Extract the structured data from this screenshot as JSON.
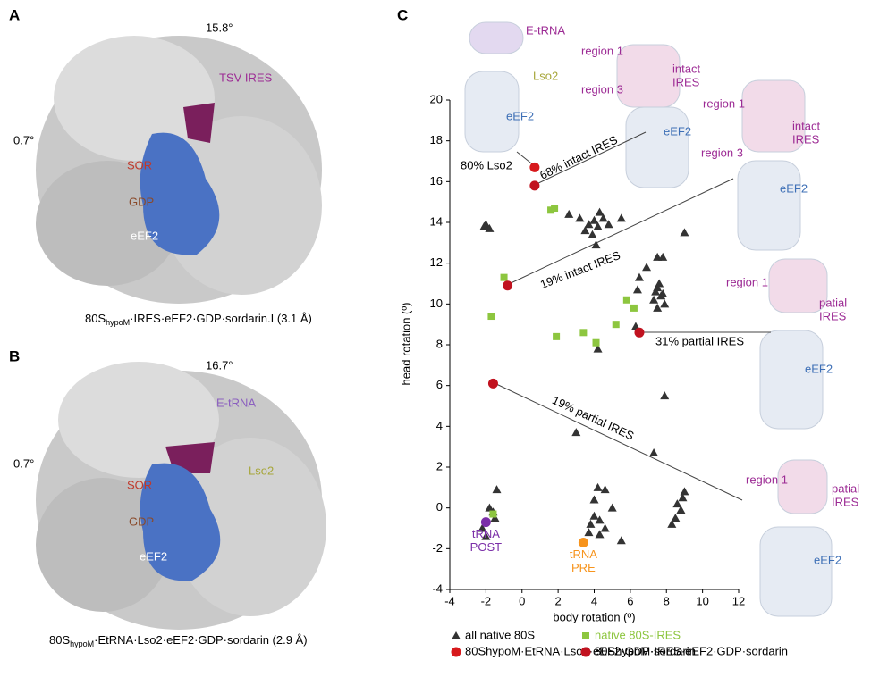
{
  "panels": {
    "a": {
      "letter": "A",
      "rotation_top": "15.8°",
      "rotation_left": "0.7°",
      "ligand": "TSV IRES",
      "sor": "SOR",
      "gdp": "GDP",
      "eef2": "eEF2",
      "caption": {
        "pre": "80S",
        "sub": "hypoM",
        "post": "·IRES·eEF2·GDP·sordarin.I (3.1 Å)"
      }
    },
    "b": {
      "letter": "B",
      "rotation_top": "16.7°",
      "rotation_left": "0.7°",
      "ligand": "E-tRNA",
      "lso2": "Lso2",
      "sor": "SOR",
      "gdp": "GDP",
      "eef2": "eEF2",
      "caption": {
        "pre": "80S",
        "sub": "hypoM",
        "post": "·EtRNA·Lso2·eEF2·GDP·sordarin (2.9 Å)"
      }
    },
    "c": {
      "letter": "C"
    }
  },
  "insets": {
    "etrna": "E-tRNA",
    "lso2": "Lso2",
    "eef2_1": "eEF2",
    "r1_1": "region 1",
    "r3_1": "region 3",
    "intact_1": [
      "intact",
      "IRES"
    ],
    "eef2_2": "eEF2",
    "r1_2": "region 1",
    "r3_2": "region 3",
    "intact_2": [
      "intact",
      "IRES"
    ],
    "eef2_3": "eEF2",
    "r1_3": "region 1",
    "partial_1": [
      "patial",
      "IRES"
    ],
    "eef2_4": "eEF2",
    "r1_4": "region 1",
    "partial_2": [
      "patial",
      "IRES"
    ],
    "eef2_5": "eEF2"
  },
  "chart_data": {
    "type": "scatter",
    "xlabel": "body rotation (º)",
    "ylabel": "head rotation (º)",
    "xlim": [
      -4,
      12
    ],
    "ylim": [
      -4,
      20
    ],
    "xticks": [
      -4,
      -2,
      0,
      2,
      4,
      6,
      8,
      10,
      12
    ],
    "yticks": [
      -4,
      -2,
      0,
      2,
      4,
      6,
      8,
      10,
      12,
      14,
      16,
      18,
      20
    ],
    "series": [
      {
        "name": "all native 80S",
        "color": "#333333",
        "marker": "triangle",
        "x": [
          -2,
          -1.8,
          -2.1,
          -2,
          -1.5,
          -1.8,
          -1.4,
          -2.2,
          -1.6,
          3,
          2.6,
          3.2,
          3.7,
          4,
          4.2,
          3.5,
          4.5,
          3.9,
          4.3,
          4.8,
          4.1,
          4.2,
          5.5,
          6.4,
          6.5,
          6.9,
          7.5,
          7.3,
          7.6,
          7.8,
          7.5,
          7.8,
          7.5,
          7.9,
          9,
          7.4,
          7.7,
          6.3,
          7.9,
          7.3,
          4,
          4.2,
          4.6,
          4,
          3.8,
          4.3,
          4.6,
          5.5,
          4.3,
          3.7,
          5,
          8.5,
          8.9,
          8.6,
          8.8,
          9,
          8.3
        ],
        "y": [
          13.9,
          13.7,
          13.8,
          -1.4,
          -0.5,
          0,
          0.9,
          -1,
          -0.2,
          3.7,
          14.4,
          14.2,
          13.9,
          14.1,
          13.8,
          13.6,
          14.2,
          13.4,
          14.5,
          13.9,
          12.9,
          7.8,
          14.2,
          10.7,
          11.3,
          11.8,
          10.8,
          10.2,
          11,
          10.5,
          12.3,
          12.3,
          9.8,
          10,
          13.5,
          10.6,
          10.4,
          8.9,
          5.5,
          2.7,
          0.4,
          1,
          0.9,
          -0.4,
          -0.8,
          -0.6,
          -1,
          -1.6,
          -1.3,
          -1.2,
          0,
          -0.5,
          0.5,
          0.2,
          -0.1,
          0.8,
          -0.8
        ]
      },
      {
        "name": "native 80S-IRES",
        "color": "#8dc63f",
        "marker": "square",
        "x": [
          -1,
          -1.7,
          1.6,
          1.8,
          1.9,
          3.4,
          4.1,
          5.2,
          5.8,
          6.2,
          -1.6
        ],
        "y": [
          11.3,
          9.4,
          14.6,
          14.7,
          8.4,
          8.6,
          8.1,
          9,
          10.2,
          9.8,
          -0.3
        ]
      },
      {
        "name": "80ShypoM·EtRNA·Lso2·eEF2·GDP·sordarin",
        "color": "#d7191c",
        "marker": "circle",
        "x": [
          0.7
        ],
        "y": [
          16.7
        ]
      },
      {
        "name": "80ShypoM·IRES·eEF2·GDP·sordarin",
        "color": "#c1121f",
        "marker": "circle",
        "x": [
          0.7,
          -0.8,
          6.5,
          -1.6
        ],
        "y": [
          15.8,
          10.9,
          8.6,
          6.1
        ]
      }
    ],
    "points": [
      {
        "label": [
          "tRNA",
          "POST"
        ],
        "color": "#7b2fa8",
        "x": -2,
        "y": -0.7
      },
      {
        "label": [
          "tRNA",
          "PRE"
        ],
        "color": "#f7941d",
        "x": 3.4,
        "y": -1.7
      }
    ],
    "annotations": [
      "80% Lso2",
      "68% intact IRES",
      "19% intact IRES",
      "31% partial IRES",
      "19% partial IRES"
    ]
  }
}
